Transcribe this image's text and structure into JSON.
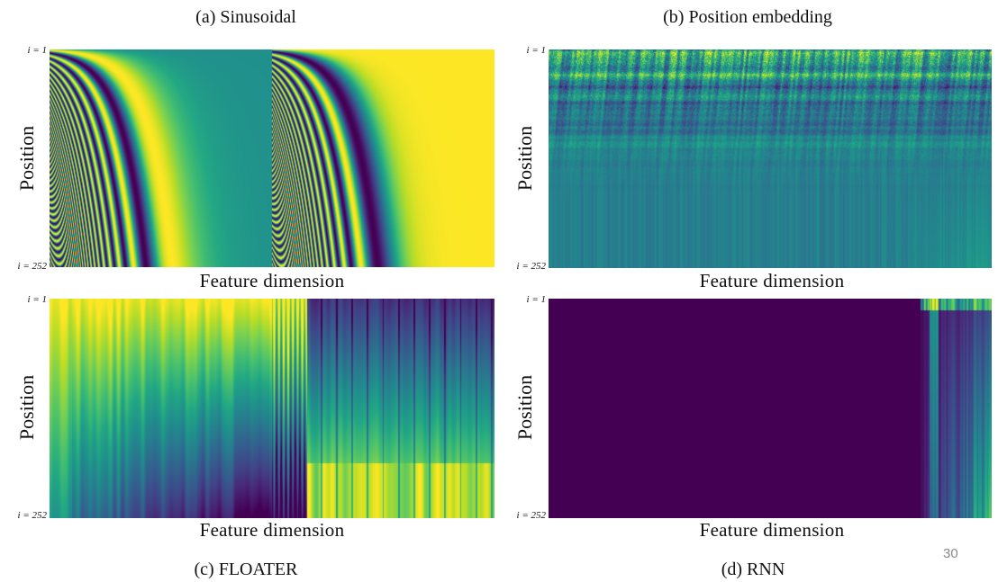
{
  "page_number": "30",
  "chart_data": [
    {
      "type": "heatmap",
      "title": "(a) Sinusoidal",
      "xlabel": "Feature dimension",
      "ylabel": "Position",
      "y_ticks": [
        "i = 1",
        "i = 252"
      ],
      "ylim": [
        1,
        252
      ],
      "colormap": "viridis",
      "pattern": "sinusoidal"
    },
    {
      "type": "heatmap",
      "title": "(b) Position embedding",
      "xlabel": "Feature dimension",
      "ylabel": "Position",
      "y_ticks": [
        "i = 1",
        "i = 252"
      ],
      "ylim": [
        1,
        252
      ],
      "colormap": "viridis",
      "pattern": "learned-noise"
    },
    {
      "type": "heatmap",
      "title": "(c) FLOATER",
      "xlabel": "Feature dimension",
      "ylabel": "Position",
      "y_ticks": [
        "i = 1",
        "i = 252"
      ],
      "ylim": [
        1,
        252
      ],
      "colormap": "viridis",
      "pattern": "floater"
    },
    {
      "type": "heatmap",
      "title": "(d) RNN",
      "xlabel": "Feature dimension",
      "ylabel": "Position",
      "y_ticks": [
        "i = 1",
        "i = 252"
      ],
      "ylim": [
        1,
        252
      ],
      "colormap": "viridis",
      "pattern": "rnn"
    }
  ],
  "colors": {
    "viridis_low": "#440154",
    "viridis_mid": "#21918c",
    "viridis_high": "#fde725"
  }
}
